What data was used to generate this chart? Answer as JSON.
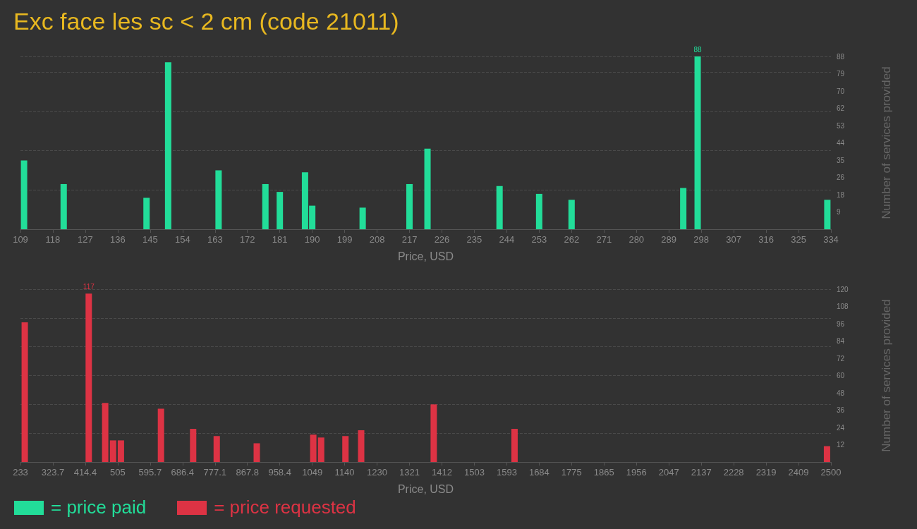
{
  "chart_data": [
    {
      "type": "bar",
      "title": "Exc face les sc < 2 cm (code 21011)",
      "xlabel": "Price, USD",
      "ylabel": "Number of services provided",
      "xlim": [
        109,
        334
      ],
      "xticks": [
        109,
        118,
        127,
        136,
        145,
        154,
        163,
        172,
        181,
        190,
        199,
        208,
        217,
        226,
        235,
        244,
        253,
        262,
        271,
        280,
        289,
        298,
        307,
        316,
        325,
        334
      ],
      "ylim": [
        0,
        88
      ],
      "yticks": [
        {
          "value": 8.8,
          "label": "9"
        },
        {
          "value": 17.6,
          "label": "18"
        },
        {
          "value": 26.4,
          "label": "26"
        },
        {
          "value": 35.2,
          "label": "35"
        },
        44,
        {
          "value": 52.8,
          "label": "53"
        },
        {
          "value": 61.6,
          "label": "62"
        },
        {
          "value": 70.4,
          "label": "70"
        },
        {
          "value": 79.2,
          "label": "79"
        },
        88
      ],
      "grid": "y",
      "legend": "bottom left",
      "series": [
        {
          "name": "= price paid",
          "color": "#22dd99",
          "x": [
            110,
            121,
            144,
            150,
            164,
            177,
            181,
            188,
            190,
            204,
            217,
            222,
            242,
            253,
            262,
            293,
            297,
            333
          ],
          "values": [
            35,
            23,
            16,
            85,
            30,
            23,
            19,
            29,
            12,
            11,
            23,
            41,
            22,
            18,
            15,
            21,
            88,
            15
          ],
          "value_labels": [
            null,
            null,
            null,
            null,
            null,
            null,
            null,
            null,
            null,
            null,
            null,
            null,
            null,
            null,
            null,
            null,
            "88",
            null
          ]
        }
      ]
    },
    {
      "type": "bar",
      "xlabel": "Price, USD",
      "ylabel": "Number of services provided",
      "xlim": [
        233,
        2500
      ],
      "xticks": [
        233,
        {
          "value": 323.68,
          "label": "323.7"
        },
        {
          "value": 414.36,
          "label": "414.4"
        },
        {
          "value": 505.04,
          "label": "505"
        },
        {
          "value": 595.72,
          "label": "595.7"
        },
        686.4,
        {
          "value": 777.08,
          "label": "777.1"
        },
        {
          "value": 867.76,
          "label": "867.8"
        },
        {
          "value": 958.44,
          "label": "958.4"
        },
        {
          "value": 1049.12,
          "label": "1049"
        },
        {
          "value": 1139.8,
          "label": "1140"
        },
        {
          "value": 1230.48,
          "label": "1230"
        },
        {
          "value": 1321.16,
          "label": "1321"
        },
        {
          "value": 1411.84,
          "label": "1412"
        },
        {
          "value": 1502.52,
          "label": "1503"
        },
        {
          "value": 1593.2,
          "label": "1593"
        },
        {
          "value": 1683.88,
          "label": "1684"
        },
        {
          "value": 1774.56,
          "label": "1775"
        },
        {
          "value": 1865.24,
          "label": "1865"
        },
        {
          "value": 1955.92,
          "label": "1956"
        },
        {
          "value": 2046.6,
          "label": "2047"
        },
        {
          "value": 2137.28,
          "label": "2137"
        },
        {
          "value": 2227.96,
          "label": "2228"
        },
        {
          "value": 2318.64,
          "label": "2319"
        },
        {
          "value": 2409.32,
          "label": "2409"
        },
        2500
      ],
      "ylim": [
        0,
        120
      ],
      "yticks": [
        12,
        24,
        36,
        48,
        60,
        72,
        84,
        96,
        108,
        120
      ],
      "grid": "y",
      "legend": "bottom left",
      "series": [
        {
          "name": "= price requested",
          "color": "#dd3344",
          "x": [
            245,
            424,
            470,
            492,
            514,
            626,
            716,
            782,
            894,
            1052,
            1074,
            1142,
            1186,
            1389,
            1615,
            2489
          ],
          "values": [
            97,
            117,
            41,
            15,
            15,
            37,
            23,
            18,
            13,
            19,
            17,
            18,
            22,
            40,
            23,
            11
          ],
          "value_labels": [
            null,
            "117",
            null,
            null,
            null,
            null,
            null,
            null,
            null,
            null,
            null,
            null,
            null,
            null,
            null,
            null
          ]
        }
      ]
    }
  ]
}
